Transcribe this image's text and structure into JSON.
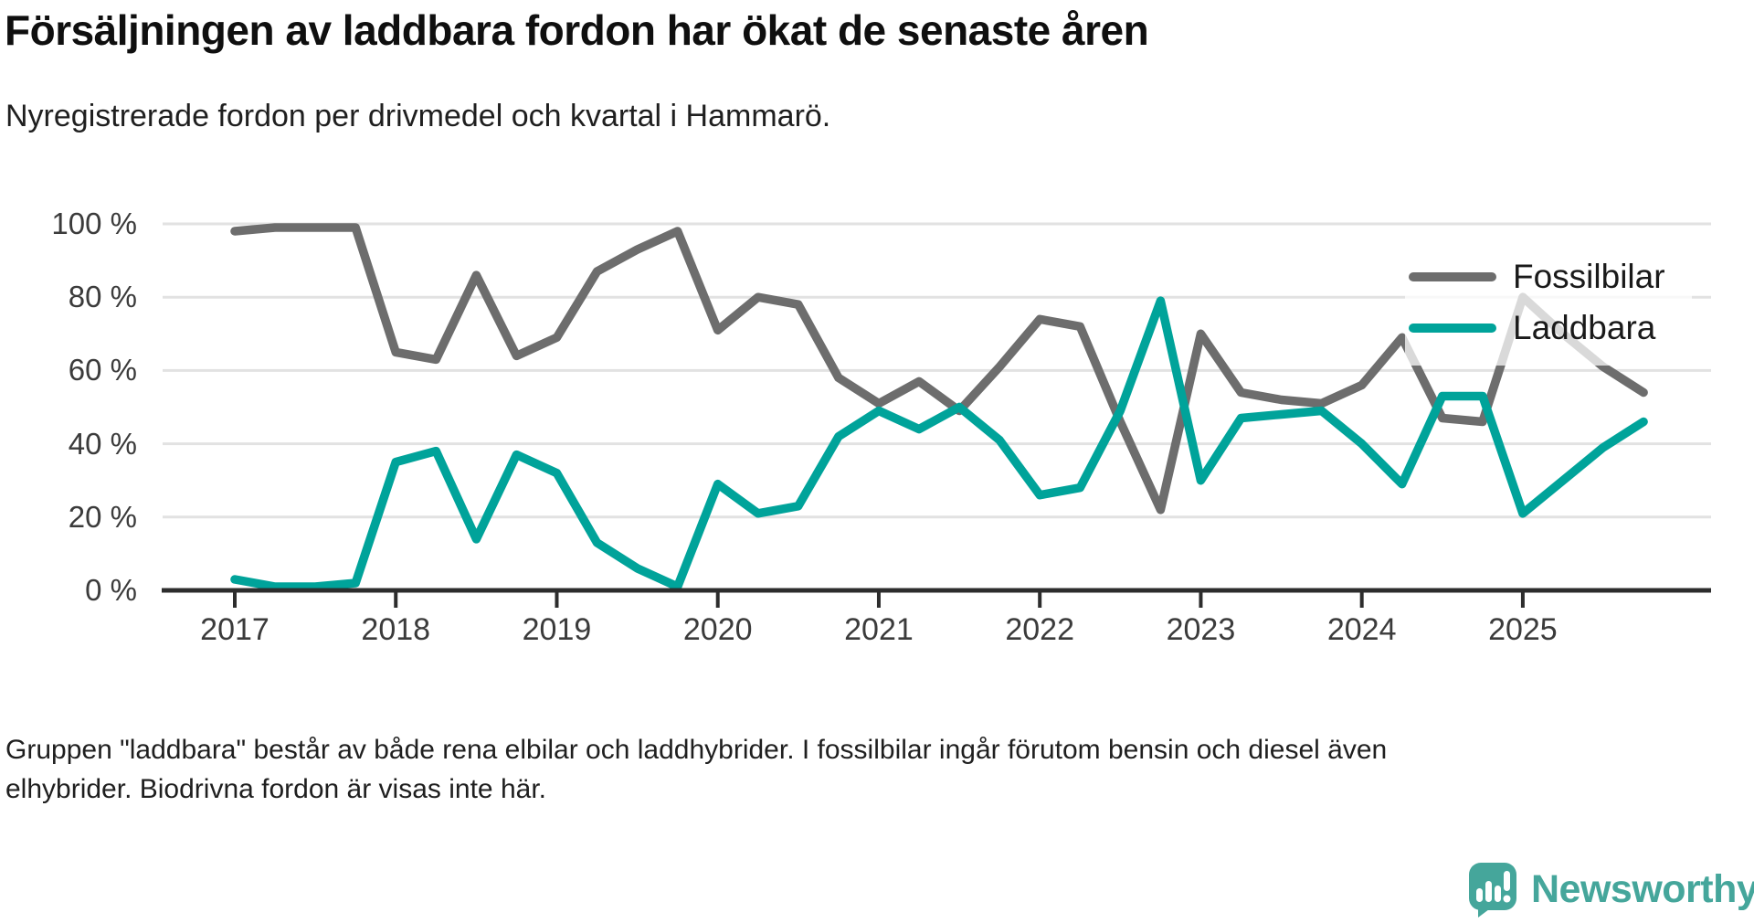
{
  "header": {
    "title": "Försäljningen av laddbara fordon har ökat de senaste åren",
    "subtitle": "Nyregistrerade fordon per drivmedel och kvartal i Hammarö."
  },
  "chart_data": {
    "type": "line",
    "title": "Försäljningen av laddbara fordon har ökat de senaste åren",
    "subtitle": "Nyregistrerade fordon per drivmedel och kvartal i Hammarö.",
    "x_quarters": [
      "2017 Q1",
      "2017 Q2",
      "2017 Q3",
      "2017 Q4",
      "2018 Q1",
      "2018 Q2",
      "2018 Q3",
      "2018 Q4",
      "2019 Q1",
      "2019 Q2",
      "2019 Q3",
      "2019 Q4",
      "2020 Q1",
      "2020 Q2",
      "2020 Q3",
      "2020 Q4",
      "2021 Q1",
      "2021 Q2",
      "2021 Q3",
      "2021 Q4",
      "2022 Q1",
      "2022 Q2",
      "2022 Q3",
      "2022 Q4",
      "2023 Q1",
      "2023 Q2",
      "2023 Q3",
      "2023 Q4",
      "2024 Q1",
      "2024 Q2",
      "2024 Q3",
      "2024 Q4",
      "2025 Q1",
      "2025 Q2",
      "2025 Q3",
      "2025 Q4"
    ],
    "x_tick_labels": [
      "2017",
      "2018",
      "2019",
      "2020",
      "2021",
      "2022",
      "2023",
      "2024",
      "2025"
    ],
    "y_ticks": [
      100,
      80,
      60,
      40,
      20,
      0
    ],
    "y_tick_labels": [
      "100 %",
      "80 %",
      "60 %",
      "40 %",
      "20 %",
      "0 %"
    ],
    "ylim": [
      0,
      100
    ],
    "unit": "%",
    "grid": "horizontal",
    "legend_position": "top-right-inside",
    "series": [
      {
        "name": "Fossilbilar",
        "color": "#6d6d6d",
        "values": [
          98,
          99,
          99,
          99,
          65,
          63,
          86,
          64,
          69,
          87,
          93,
          98,
          71,
          80,
          78,
          58,
          51,
          57,
          49,
          61,
          74,
          72,
          46,
          22,
          70,
          54,
          52,
          51,
          56,
          69,
          47,
          46,
          80,
          70,
          61,
          54
        ]
      },
      {
        "name": "Laddbara",
        "color": "#00a39a",
        "values": [
          3,
          1,
          1,
          2,
          35,
          38,
          14,
          37,
          32,
          13,
          6,
          1,
          29,
          21,
          23,
          42,
          49,
          44,
          50,
          41,
          26,
          28,
          49,
          79,
          30,
          47,
          48,
          49,
          40,
          29,
          53,
          53,
          21,
          30,
          39,
          46
        ]
      }
    ]
  },
  "footer": {
    "line1": "Gruppen \"laddbara\" består av både rena elbilar och laddhybrider. I fossilbilar ingår förutom bensin och diesel även",
    "line2": "elhybrider. Biodrivna fordon är visas inte här."
  },
  "logo": {
    "text": "Newsworthy",
    "color": "#45a69b",
    "icon": "newsworthy-speech-bubble-chart-icon"
  }
}
